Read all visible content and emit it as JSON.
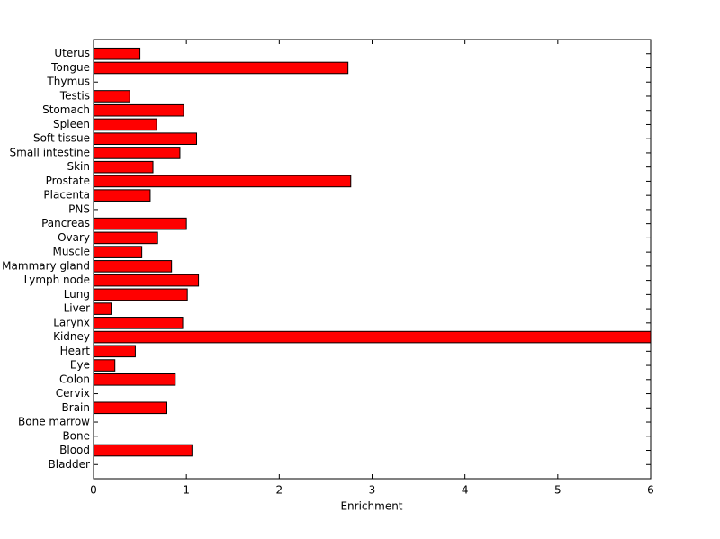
{
  "chart_data": {
    "type": "barh",
    "xlabel": "Enrichment",
    "categories": [
      "Uterus",
      "Tongue",
      "Thymus",
      "Testis",
      "Stomach",
      "Spleen",
      "Soft tissue",
      "Small intestine",
      "Skin",
      "Prostate",
      "Placenta",
      "PNS",
      "Pancreas",
      "Ovary",
      "Muscle",
      "Mammary gland",
      "Lymph node",
      "Lung",
      "Liver",
      "Larynx",
      "Kidney",
      "Heart",
      "Eye",
      "Colon",
      "Cervix",
      "Brain",
      "Bone marrow",
      "Bone",
      "Blood",
      "Bladder"
    ],
    "values": [
      0.5,
      2.74,
      0,
      0.39,
      0.97,
      0.68,
      1.11,
      0.93,
      0.64,
      2.77,
      0.61,
      0,
      1.0,
      0.69,
      0.52,
      0.84,
      1.13,
      1.01,
      0.19,
      0.96,
      6,
      0.45,
      0.23,
      0.88,
      0,
      0.79,
      0,
      0,
      1.06,
      0
    ],
    "color": "#ff0000",
    "xlim": [
      0,
      6
    ],
    "xticks": [
      0,
      1,
      2,
      3,
      4,
      5,
      6
    ]
  }
}
